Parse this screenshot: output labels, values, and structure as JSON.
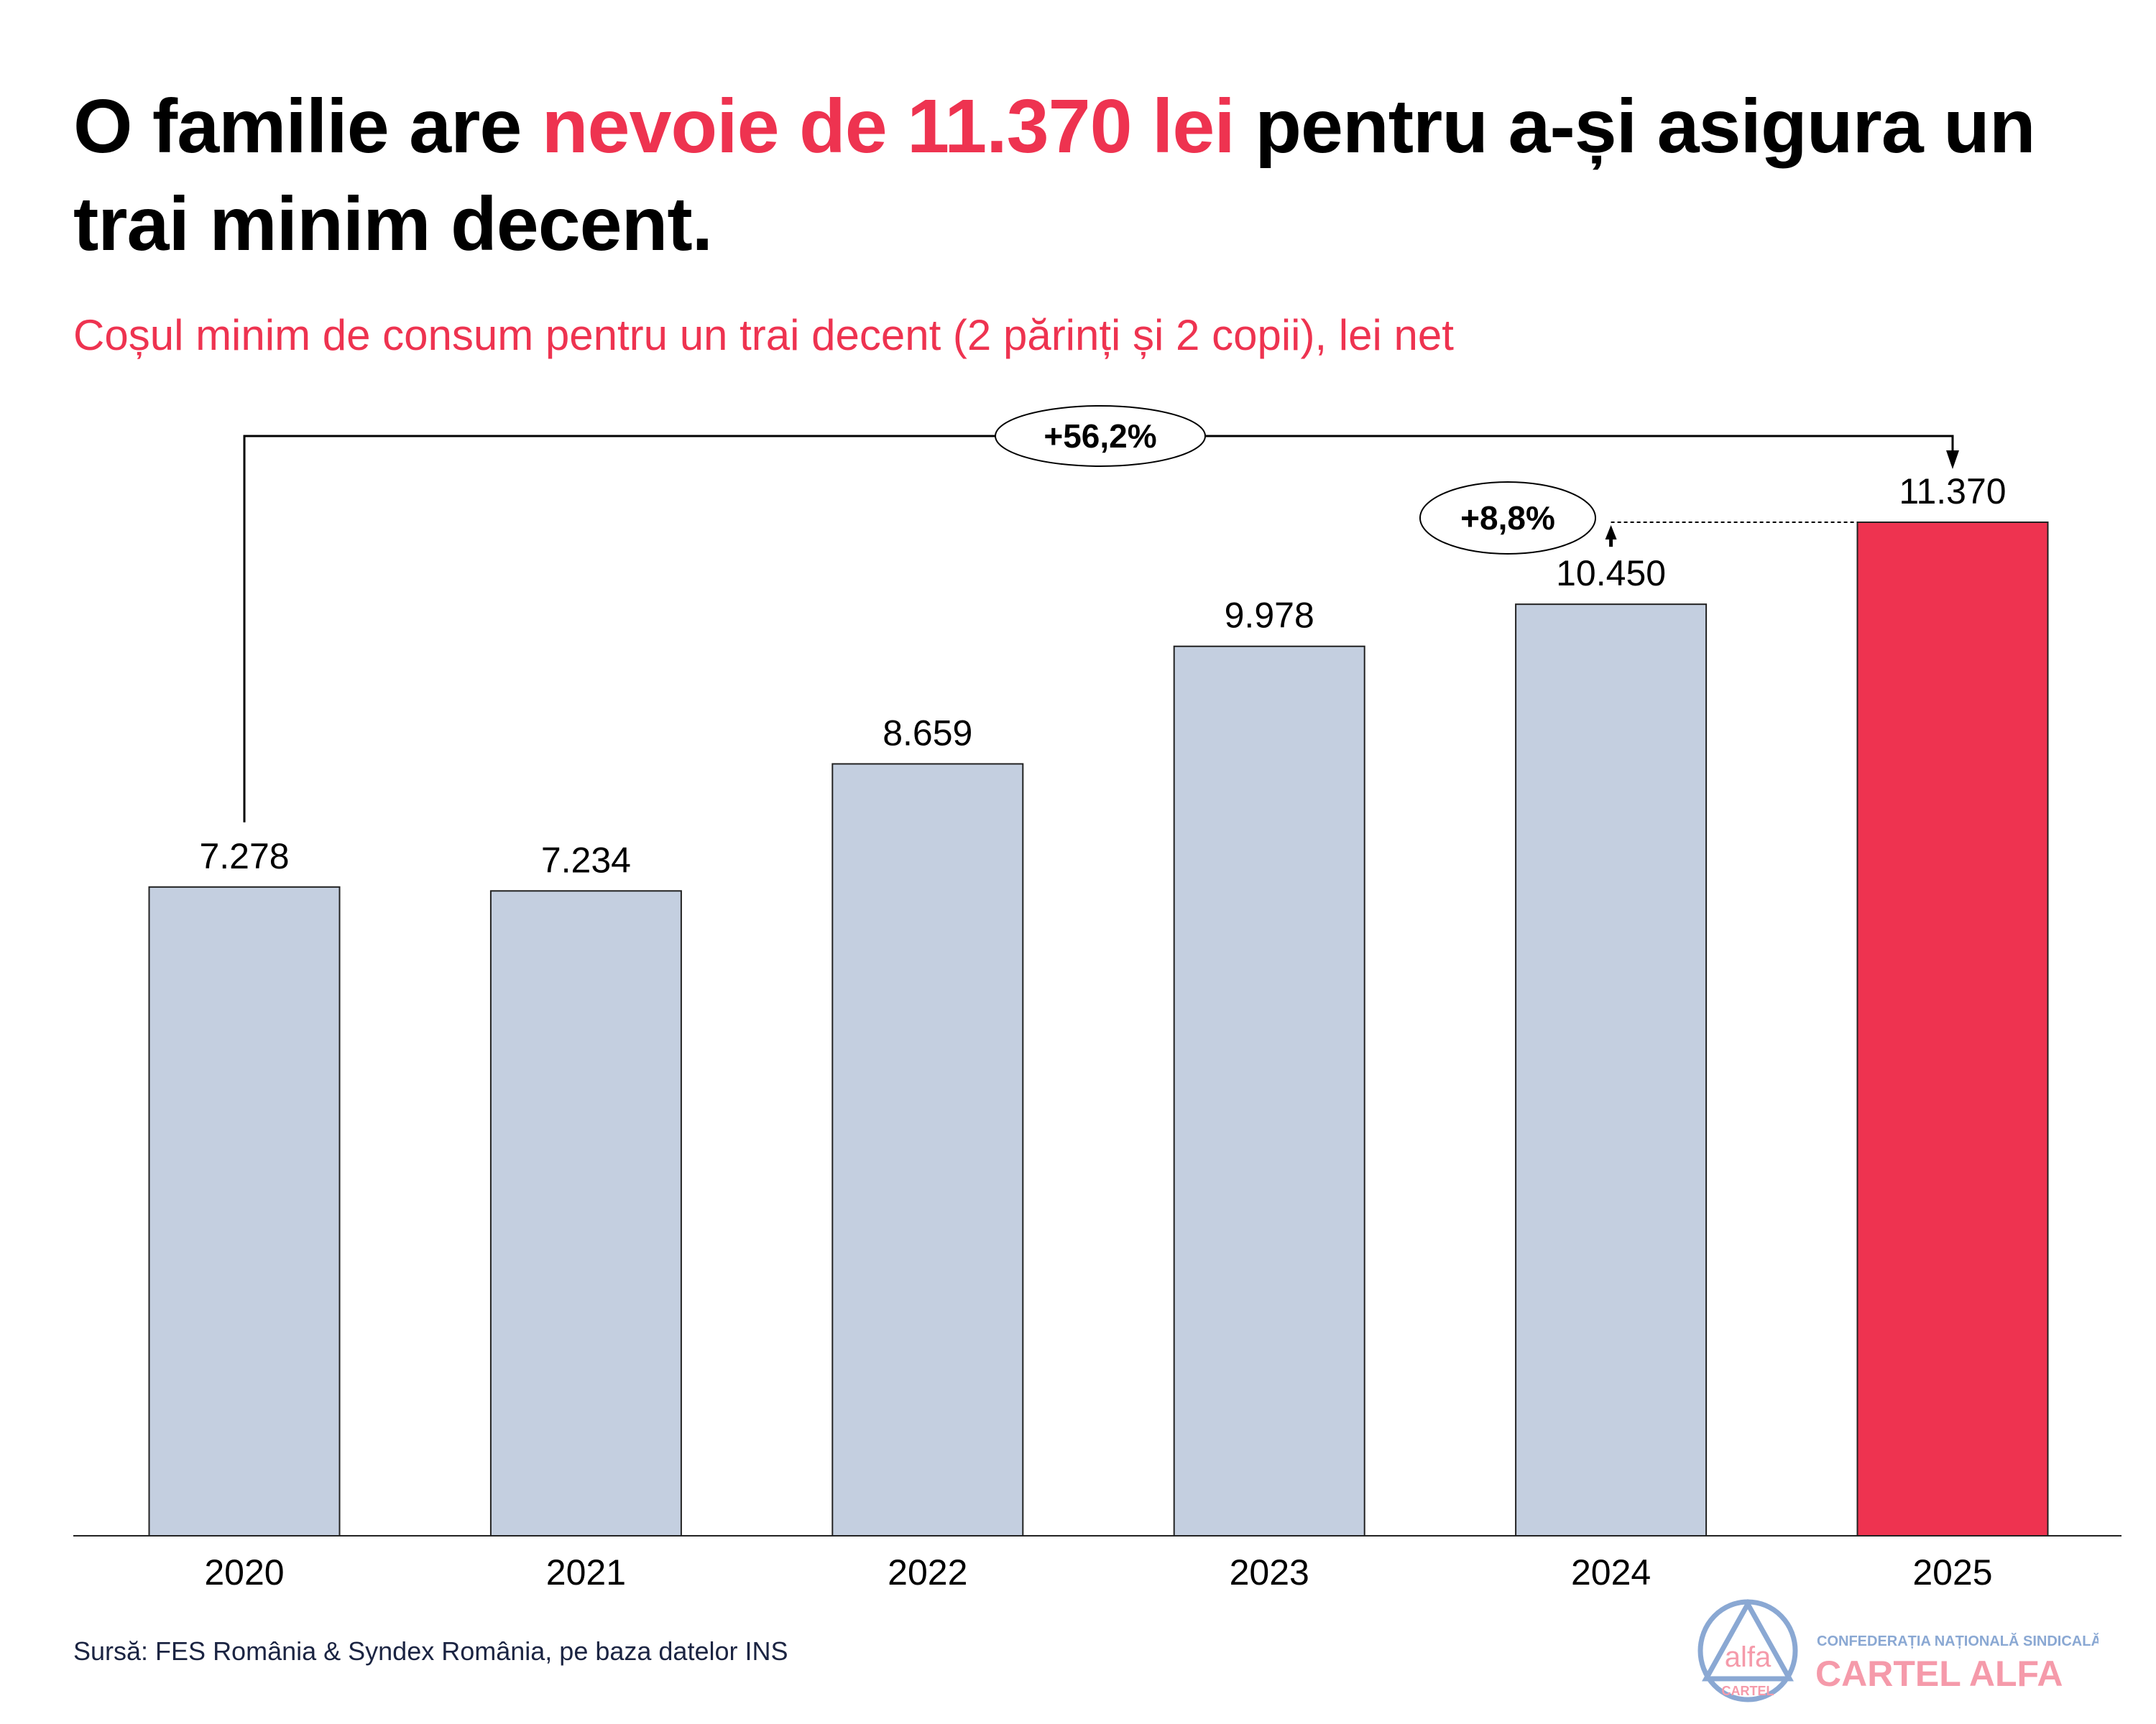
{
  "title": {
    "part1": "O familie are ",
    "highlight": "nevoie de 11.370 lei",
    "part2": " pentru a-și asigura un trai minim decent."
  },
  "subtitle": "Coșul minim de consum pentru un trai decent (2 părinți și 2 copii), lei net",
  "source": "Sursă: FES România & Syndex România, pe baza datelor INS",
  "logo": {
    "small_text": "CONFEDERAȚIA NAȚIONALĂ SINDICALĂ",
    "big_text": "CARTEL ALFA",
    "emblem_top": "alfa",
    "emblem_bottom": "CARTEL"
  },
  "colors": {
    "bar": "#c4cfe0",
    "highlight": "#ee3350",
    "logo_blue": "#8aa8d3",
    "logo_pink": "#f59aaa"
  },
  "chart_data": {
    "type": "bar",
    "title": "Coșul minim de consum pentru un trai decent (2 părinți și 2 copii), lei net",
    "categories": [
      "2020",
      "2021",
      "2022",
      "2023",
      "2024",
      "2025"
    ],
    "values": [
      7278,
      7234,
      8659,
      9978,
      10450,
      11370
    ],
    "value_labels": [
      "7.278",
      "7.234",
      "8.659",
      "9.978",
      "10.450",
      "11.370"
    ],
    "highlight_index": 5,
    "ylim": [
      0,
      11370
    ],
    "xlabel": "",
    "ylabel": "",
    "grid": false,
    "annotations": [
      {
        "text": "+56,2%",
        "from": "2020",
        "to": "2025"
      },
      {
        "text": "+8,8%",
        "from": "2024",
        "to": "2025"
      }
    ]
  }
}
